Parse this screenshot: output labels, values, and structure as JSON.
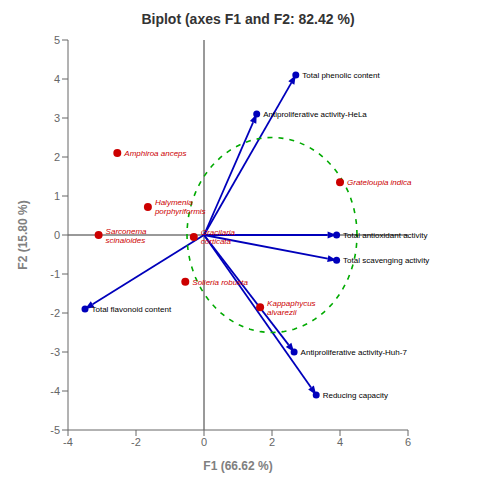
{
  "chart_data": {
    "type": "scatter",
    "title": "Biplot (axes F1 and F2: 82.42 %)",
    "x_label": "F1 (66.62 %)",
    "y_label": "F2 (15.80 %)",
    "xlim": [
      -4,
      6
    ],
    "ylim": [
      -5,
      5
    ],
    "xticks": [
      -4,
      -2,
      0,
      2,
      4,
      6
    ],
    "yticks": [
      -5,
      -4,
      -3,
      -2,
      -1,
      0,
      1,
      2,
      3,
      4,
      5
    ],
    "grid": false,
    "series": [
      {
        "type": "vector",
        "color": "#0000bb",
        "marker": "circle",
        "labels": [
          "Total phenolic content",
          "Antiproliferative activity-HeLa",
          "Total antioxidant activity",
          "Total scavenging activity",
          "Total flavonoid content",
          "Antiproliferative activity-Huh-7",
          "Reducing capacity"
        ],
        "x": [
          2.7,
          1.55,
          3.9,
          3.9,
          -3.5,
          2.65,
          3.3
        ],
        "y": [
          4.1,
          3.1,
          0.0,
          -0.65,
          -1.9,
          -3.0,
          -4.1
        ]
      },
      {
        "type": "scatter",
        "color": "#cc0000",
        "marker": "circle",
        "labels": [
          "Amphiroa anceps",
          "Halymenia\nporphyriformis",
          "Gracilaria\ncorticata",
          "Sarconema\nscinaioides",
          "Solieria robusta",
          "Kappaphycus\nalvarezii",
          "Grateloupia indica"
        ],
        "x": [
          -2.55,
          -1.65,
          -0.3,
          -3.1,
          -0.55,
          1.65,
          4.0
        ],
        "y": [
          2.1,
          0.72,
          -0.05,
          0.0,
          -1.2,
          -1.85,
          1.35
        ]
      }
    ],
    "circle": {
      "center": [
        2.0,
        0.0
      ],
      "radius": 2.5,
      "color": "#00aa00",
      "line_style": "dashed"
    }
  }
}
